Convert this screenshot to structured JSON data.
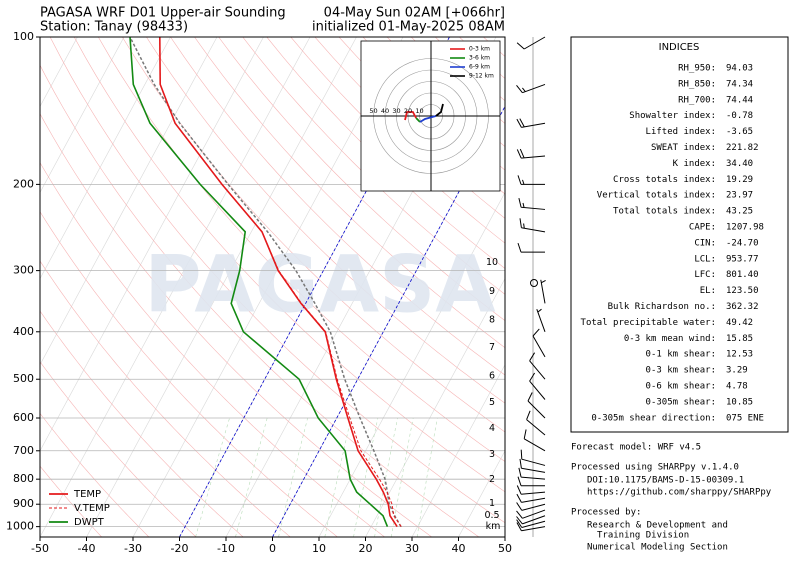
{
  "chart_data": {
    "type": "skewt",
    "title": "PAGASA WRF D01 Upper-air Sounding",
    "subtitle": "Station: Tanay (98433)",
    "title_right": "04-May Sun 02AM [+066hr]",
    "subtitle_right": "initialized 01-May-2025 08AM",
    "watermark": "PAGASA",
    "xlim": [
      -50,
      50
    ],
    "xticks": [
      -50,
      -40,
      -30,
      -20,
      -10,
      0,
      10,
      20,
      30,
      40,
      50
    ],
    "ylim": [
      1050,
      100
    ],
    "yticks": [
      1000,
      900,
      800,
      700,
      600,
      500,
      400,
      300,
      200,
      100
    ],
    "log_y": true,
    "grid": true,
    "legend": "lower left",
    "y": [
      1000,
      950,
      900,
      850,
      800,
      700,
      600,
      500,
      400,
      350,
      300,
      250,
      200,
      150,
      125,
      100
    ],
    "series": [
      {
        "name": "TEMP",
        "color": "#e41a1c",
        "dash": false,
        "values": [
          25.6,
          22.8,
          21.1,
          18.6,
          15.6,
          8.4,
          2.4,
          -4.6,
          -12.5,
          -21.0,
          -29.7,
          -37.7,
          -51.8,
          -69.0,
          -76.7,
          -82.3
        ]
      },
      {
        "name": "V.TEMP",
        "color": "#e41a1c",
        "dash": true,
        "values": [
          26.5,
          23.6,
          21.9,
          19.4,
          16.3,
          9.0,
          2.8,
          -4.4,
          -12.4,
          -20.9,
          -29.6,
          -37.7,
          -51.8,
          -69.0,
          -76.7,
          -82.3
        ]
      },
      {
        "name": "DWPT",
        "color": "#138a13",
        "dash": false,
        "values": [
          23.5,
          21.3,
          17.2,
          12.9,
          10.0,
          5.6,
          -4.0,
          -12.6,
          -30.1,
          -36.0,
          -38.0,
          -41.3,
          -56.5,
          -74.4,
          -82.5,
          -88.7
        ]
      }
    ],
    "parcel": {
      "color": "#777777",
      "values": [
        26.4,
        23.8,
        21.3,
        19.5,
        17.5,
        11.8,
        5.0,
        -2.8,
        -11.4,
        -18.0,
        -25.9,
        -36.5,
        -50.5,
        -68.0,
        -78.0,
        -88.7
      ]
    },
    "isotherm_lines": {
      "color": "#0000cc",
      "values": [
        -20,
        0
      ]
    },
    "heights": {
      "unit": "km",
      "labels": [
        0.5,
        1,
        2,
        3,
        4,
        5,
        6,
        7,
        8,
        9,
        10
      ],
      "pressure": [
        950,
        898,
        802,
        713,
        631,
        558,
        492,
        431,
        378,
        331,
        289
      ]
    },
    "wind": {
      "pressure": [
        1000,
        975,
        950,
        925,
        900,
        875,
        850,
        825,
        800,
        775,
        750,
        700,
        650,
        600,
        550,
        500,
        450,
        400,
        350,
        318,
        275,
        250,
        225,
        200,
        175,
        150,
        125,
        100
      ],
      "direction": [
        260,
        255,
        250,
        250,
        255,
        260,
        265,
        270,
        275,
        280,
        285,
        300,
        310,
        315,
        320,
        320,
        330,
        340,
        350,
        0,
        270,
        280,
        275,
        270,
        265,
        260,
        250,
        240
      ],
      "speed": [
        10,
        10,
        10,
        10,
        10,
        10,
        10,
        10,
        10,
        10,
        10,
        10,
        10,
        10,
        10,
        10,
        10,
        5,
        5,
        0,
        10,
        15,
        15,
        15,
        20,
        20,
        15,
        10
      ]
    },
    "hodograph": {
      "rings": [
        10,
        20,
        30,
        40,
        50
      ],
      "series": [
        {
          "name": "0-3 km",
          "color": "#e41a1c",
          "u": [
            -22.6,
            -20.9,
            -15.7,
            -13.0
          ],
          "v": [
            -3.5,
            3.5,
            3.5,
            -1.7
          ]
        },
        {
          "name": "3-6 km",
          "color": "#138a13",
          "u": [
            -13.0,
            -9.6
          ],
          "v": [
            -1.7,
            -5.2
          ]
        },
        {
          "name": "6-9 km",
          "color": "#1f3fd0",
          "u": [
            -9.6,
            -5.2,
            4.3
          ],
          "v": [
            -5.2,
            -2.6,
            0.0
          ]
        },
        {
          "name": "9-12 km",
          "color": "#000000",
          "u": [
            4.3,
            8.7,
            10.4
          ],
          "v": [
            0.0,
            3.5,
            10.4
          ]
        }
      ]
    }
  },
  "indices": {
    "title": "INDICES",
    "rows": [
      [
        "RH_950:",
        "94.03"
      ],
      [
        "RH_850:",
        "74.34"
      ],
      [
        "RH_700:",
        "74.44"
      ],
      [
        "Showalter index:",
        "-0.78"
      ],
      [
        "Lifted index:",
        "-3.65"
      ],
      [
        "SWEAT index:",
        "221.82"
      ],
      [
        "K index:",
        "34.40"
      ],
      [
        "Cross totals index:",
        "19.29"
      ],
      [
        "Vertical totals index:",
        "23.97"
      ],
      [
        "Total totals index:",
        "43.25"
      ],
      [
        "CAPE:",
        "1207.98"
      ],
      [
        "CIN:",
        "-24.70"
      ],
      [
        "LCL:",
        "953.77"
      ],
      [
        "LFC:",
        "801.40"
      ],
      [
        "EL:",
        "123.50"
      ],
      [
        "Bulk Richardson no.:",
        "362.32"
      ],
      [
        "Total precipitable water:",
        "49.42"
      ],
      [
        "0-3 km mean wind:",
        "15.85"
      ],
      [
        "0-1 km shear:",
        "12.53"
      ],
      [
        "0-3 km shear:",
        "3.29"
      ],
      [
        "0-6 km shear:",
        "4.78"
      ],
      [
        "0-305m shear:",
        "10.85"
      ],
      [
        "0-305m shear direction:",
        "075 ENE"
      ]
    ]
  },
  "footer": {
    "model": "Forecast model: WRF v4.5",
    "processed": "Processed using SHARPpy v.1.4.0",
    "doi": "DOI:10.1175/BAMS-D-15-00309.1",
    "url": "https://github.com/sharppy/SHARPpy",
    "by": "Processed by:",
    "org1": "Research & Development and",
    "org2": "Training Division",
    "org3": "Numerical Modeling Section"
  }
}
